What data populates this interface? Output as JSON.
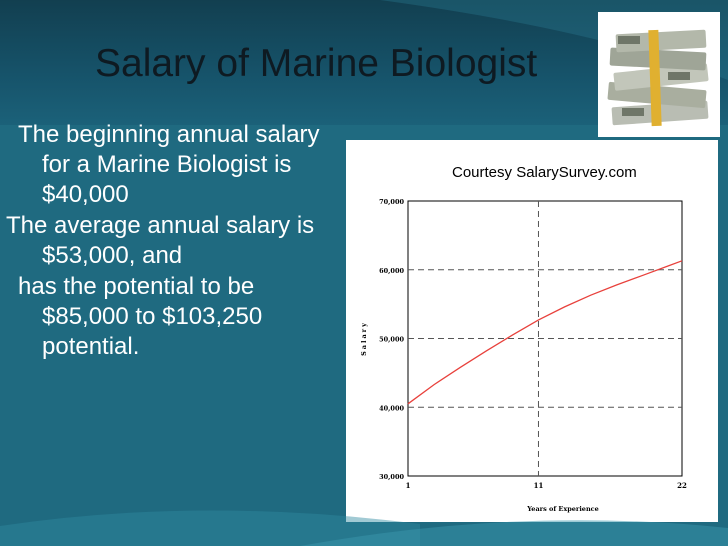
{
  "slide": {
    "title": "Salary of Marine Biologist",
    "bullets": [
      "The beginning annual salary for a Marine Biologist is $40,000",
      "The average annual salary is $53,000, and",
      "has the potential to be $85,000 to $103,250 potential."
    ],
    "courtesy": "Courtesy SalarySurvey.com"
  },
  "colors": {
    "background": "#1f6a80",
    "line": "#e8413c",
    "title": "#0e1a22"
  },
  "image": {
    "icon": "money-stack-icon"
  },
  "chart_data": {
    "type": "line",
    "title": "",
    "xlabel": "Years of Experience",
    "ylabel": "Salary",
    "x_ticks": [
      "1",
      "11",
      "22"
    ],
    "y_ticks": [
      "30,000",
      "40,000",
      "50,000",
      "60,000",
      "70,000"
    ],
    "xlim": [
      1,
      22
    ],
    "ylim": [
      30000,
      70000
    ],
    "grid": true,
    "series": [
      {
        "x": [
          1,
          3,
          5,
          7,
          9,
          11,
          13,
          15,
          17,
          19,
          21,
          22
        ],
        "y": [
          40500,
          43300,
          45800,
          48200,
          50500,
          52700,
          54600,
          56300,
          57800,
          59200,
          60600,
          61300
        ]
      }
    ]
  }
}
